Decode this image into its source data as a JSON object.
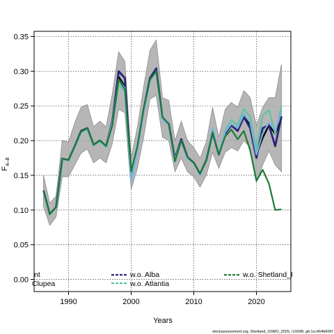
{
  "chart_data": {
    "type": "line",
    "title": "",
    "xlabel": "Years",
    "ylabel": "F",
    "ylabel_sub": "4–8",
    "xlim": [
      1984.5,
      2025.5
    ],
    "ylim": [
      -0.0175,
      0.3575
    ],
    "grid": true,
    "x_ticks": [
      1990,
      2000,
      2010,
      2020
    ],
    "x_tick_labels": [
      "1990",
      "2000",
      "2010",
      "2020"
    ],
    "y_ticks": [
      0.0,
      0.05,
      0.1,
      0.15,
      0.2,
      0.25,
      0.3,
      0.35
    ],
    "y_tick_labels": [
      "0.00",
      "0.05",
      "0.10",
      "0.15",
      "0.20",
      "0.25",
      "0.30",
      "0.35"
    ],
    "x": [
      1986,
      1987,
      1988,
      1989,
      1990,
      1991,
      1992,
      1993,
      1994,
      1995,
      1996,
      1997,
      1998,
      1999,
      2000,
      2001,
      2002,
      2003,
      2004,
      2005,
      2006,
      2007,
      2008,
      2009,
      2010,
      2011,
      2012,
      2013,
      2014,
      2015,
      2016,
      2017,
      2018,
      2019,
      2020,
      2021,
      2022,
      2023,
      2024
    ],
    "band": {
      "lower": [
        0.105,
        0.078,
        0.09,
        0.148,
        0.148,
        0.165,
        0.182,
        0.188,
        0.168,
        0.175,
        0.168,
        0.196,
        0.245,
        0.24,
        0.13,
        0.16,
        0.205,
        0.26,
        0.265,
        0.205,
        0.2,
        0.155,
        0.175,
        0.155,
        0.148,
        0.133,
        0.15,
        0.183,
        0.16,
        0.183,
        0.19,
        0.185,
        0.2,
        0.19,
        0.14,
        0.165,
        0.185,
        0.165,
        0.155
      ],
      "upper": [
        0.15,
        0.11,
        0.12,
        0.2,
        0.198,
        0.226,
        0.248,
        0.252,
        0.22,
        0.228,
        0.22,
        0.268,
        0.328,
        0.314,
        0.175,
        0.22,
        0.278,
        0.33,
        0.345,
        0.262,
        0.258,
        0.2,
        0.228,
        0.2,
        0.19,
        0.175,
        0.198,
        0.248,
        0.205,
        0.245,
        0.255,
        0.248,
        0.272,
        0.262,
        0.222,
        0.248,
        0.262,
        0.262,
        0.31
      ]
    },
    "series": [
      {
        "name": "",
        "color": "#000000",
        "values": [
          0.128,
          0.094,
          0.104,
          0.174,
          0.172,
          0.192,
          0.214,
          0.218,
          0.194,
          0.2,
          0.192,
          0.226,
          0.292,
          0.278,
          0.15,
          0.19,
          0.244,
          0.29,
          0.302,
          0.232,
          0.224,
          0.174,
          0.202,
          0.176,
          0.168,
          0.152,
          0.172,
          0.212,
          0.18,
          0.21,
          0.222,
          0.214,
          0.234,
          0.224,
          0.18,
          0.204,
          0.222,
          0.21,
          0.232
        ]
      },
      {
        "name": "w.o. Alba",
        "color": "#2a2377",
        "values": [
          0.128,
          0.094,
          0.104,
          0.174,
          0.172,
          0.192,
          0.214,
          0.218,
          0.194,
          0.2,
          0.192,
          0.228,
          0.3,
          0.29,
          0.15,
          0.19,
          0.245,
          0.29,
          0.304,
          0.232,
          0.224,
          0.174,
          0.202,
          0.176,
          0.168,
          0.152,
          0.172,
          0.212,
          0.18,
          0.21,
          0.222,
          0.214,
          0.234,
          0.218,
          0.175,
          0.218,
          0.222,
          0.192,
          0.235
        ]
      },
      {
        "name": "w.o. Atlantia",
        "color": "#5cc3a8",
        "values": [
          0.126,
          0.093,
          0.103,
          0.173,
          0.171,
          0.191,
          0.212,
          0.216,
          0.193,
          0.199,
          0.191,
          0.224,
          0.282,
          0.27,
          0.145,
          0.186,
          0.24,
          0.287,
          0.3,
          0.23,
          0.223,
          0.173,
          0.2,
          0.175,
          0.167,
          0.152,
          0.172,
          0.214,
          0.182,
          0.214,
          0.23,
          0.222,
          0.246,
          0.234,
          0.188,
          0.236,
          0.244,
          0.21,
          0.25
        ]
      },
      {
        "name": "",
        "color": "#7ab4dc",
        "values": [
          0.127,
          0.094,
          0.104,
          0.174,
          0.172,
          0.192,
          0.213,
          0.217,
          0.194,
          0.2,
          0.192,
          0.226,
          0.288,
          0.276,
          0.14,
          0.185,
          0.24,
          0.286,
          0.3,
          0.23,
          0.222,
          0.172,
          0.2,
          0.174,
          0.167,
          0.15,
          0.172,
          0.218,
          0.18,
          0.212,
          0.224,
          0.218,
          0.238,
          0.226,
          0.18,
          0.21,
          0.226,
          0.214,
          0.242
        ]
      },
      {
        "name": "w.o. Shetland_I",
        "color": "#1a7a3a",
        "values": [
          0.128,
          0.094,
          0.104,
          0.174,
          0.172,
          0.192,
          0.213,
          0.218,
          0.194,
          0.2,
          0.192,
          0.222,
          0.288,
          0.274,
          0.156,
          0.192,
          0.246,
          0.288,
          0.3,
          0.234,
          0.224,
          0.17,
          0.2,
          0.176,
          0.168,
          0.152,
          0.172,
          0.212,
          0.18,
          0.206,
          0.216,
          0.202,
          0.214,
          0.186,
          0.142,
          0.158,
          0.138,
          0.1,
          0.101
        ]
      }
    ],
    "legend": {
      "placement": "bottom",
      "entries": [
        {
          "label": "nt",
          "color": "#000000",
          "style": "solid"
        },
        {
          "label": "Clupea",
          "color": "#000000",
          "style": "solid"
        },
        {
          "label": "w.o. Alba",
          "color": "#2a2377",
          "style": "dashed"
        },
        {
          "label": "w.o. Atlantia",
          "color": "#5cc3a8",
          "style": "dashed"
        },
        {
          "label": "w.o. Shetland_I",
          "color": "#1a7a3a",
          "style": "dashed"
        }
      ]
    },
    "credit": "stockassessment.org, Shetland_SSMO_2025, r19398, git:1cc464b606f"
  }
}
